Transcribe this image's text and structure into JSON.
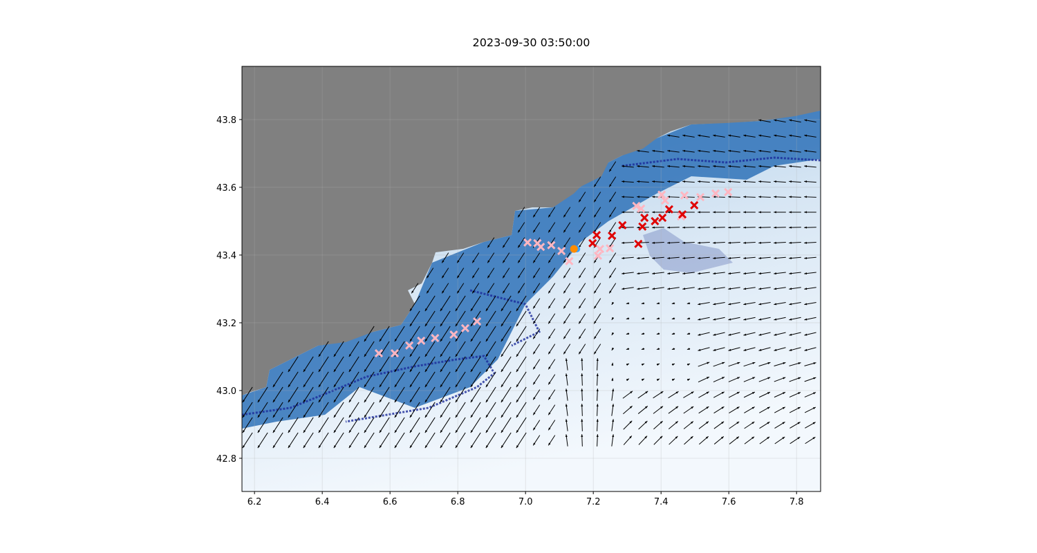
{
  "chart_data": {
    "type": "scatter",
    "title": "2023-09-30 03:50:00",
    "xlim": [
      6.163,
      7.871
    ],
    "ylim": [
      42.702,
      43.957
    ],
    "xticks": [
      "6.2",
      "6.4",
      "6.6",
      "6.8",
      "7.0",
      "7.2",
      "7.4",
      "7.6",
      "7.8"
    ],
    "yticks": [
      "42.8",
      "43.0",
      "43.2",
      "43.4",
      "43.6",
      "43.8"
    ],
    "grid": true,
    "background": {
      "land_color": "#808080",
      "ocean_colormap": "Blues",
      "contour_color": "#1a2a9a"
    },
    "quiver": {
      "color": "#000000",
      "description_visible": false
    },
    "series": [
      {
        "marker": "x",
        "color": "#ffb6c1",
        "points": [
          [
            6.567,
            43.11
          ],
          [
            6.614,
            43.11
          ],
          [
            6.657,
            43.133
          ],
          [
            6.692,
            43.147
          ],
          [
            6.733,
            43.155
          ],
          [
            6.788,
            43.165
          ],
          [
            6.822,
            43.184
          ],
          [
            6.857,
            43.204
          ],
          [
            7.006,
            43.437
          ],
          [
            7.035,
            43.435
          ],
          [
            7.045,
            43.424
          ],
          [
            7.076,
            43.429
          ],
          [
            7.106,
            43.412
          ],
          [
            7.129,
            43.382
          ],
          [
            7.22,
            43.418
          ],
          [
            7.214,
            43.398
          ],
          [
            7.249,
            43.42
          ],
          [
            7.327,
            43.545
          ],
          [
            7.341,
            43.537
          ],
          [
            7.402,
            43.578
          ],
          [
            7.412,
            43.561
          ],
          [
            7.469,
            43.576
          ],
          [
            7.516,
            43.571
          ],
          [
            7.561,
            43.582
          ],
          [
            7.598,
            43.586
          ],
          [
            7.459,
            43.514
          ]
        ]
      },
      {
        "marker": "x",
        "color": "#e00000",
        "points": [
          [
            7.198,
            43.435
          ],
          [
            7.21,
            43.459
          ],
          [
            7.255,
            43.457
          ],
          [
            7.286,
            43.488
          ],
          [
            7.333,
            43.433
          ],
          [
            7.345,
            43.484
          ],
          [
            7.351,
            43.51
          ],
          [
            7.382,
            43.5
          ],
          [
            7.404,
            43.51
          ],
          [
            7.424,
            43.535
          ],
          [
            7.463,
            43.52
          ],
          [
            7.498,
            43.547
          ]
        ]
      },
      {
        "marker": "o",
        "color": "#ff8c00",
        "points": [
          [
            7.143,
            43.418
          ]
        ]
      }
    ]
  }
}
